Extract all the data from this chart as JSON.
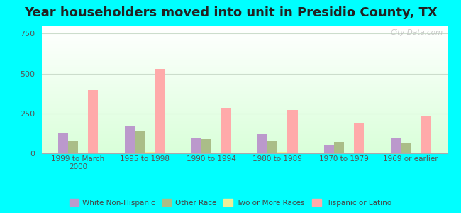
{
  "title": "Year householders moved into unit in Presidio County, TX",
  "categories": [
    "1999 to March\n2000",
    "1995 to 1998",
    "1990 to 1994",
    "1980 to 1989",
    "1970 to 1979",
    "1969 or earlier"
  ],
  "series": {
    "White Non-Hispanic": [
      130,
      170,
      95,
      120,
      55,
      100
    ],
    "Other Race": [
      80,
      140,
      90,
      75,
      70,
      65
    ],
    "Two or More Races": [
      3,
      8,
      4,
      8,
      2,
      3
    ],
    "Hispanic or Latino": [
      395,
      530,
      285,
      270,
      190,
      230
    ]
  },
  "colors": {
    "White Non-Hispanic": "#bb99cc",
    "Other Race": "#aabd88",
    "Two or More Races": "#eeee99",
    "Hispanic or Latino": "#ffaaaa"
  },
  "ylim": [
    0,
    800
  ],
  "yticks": [
    0,
    250,
    500,
    750
  ],
  "background_outer": "#00ffff",
  "watermark": "City-Data.com",
  "bar_width": 0.15,
  "title_fontsize": 13
}
